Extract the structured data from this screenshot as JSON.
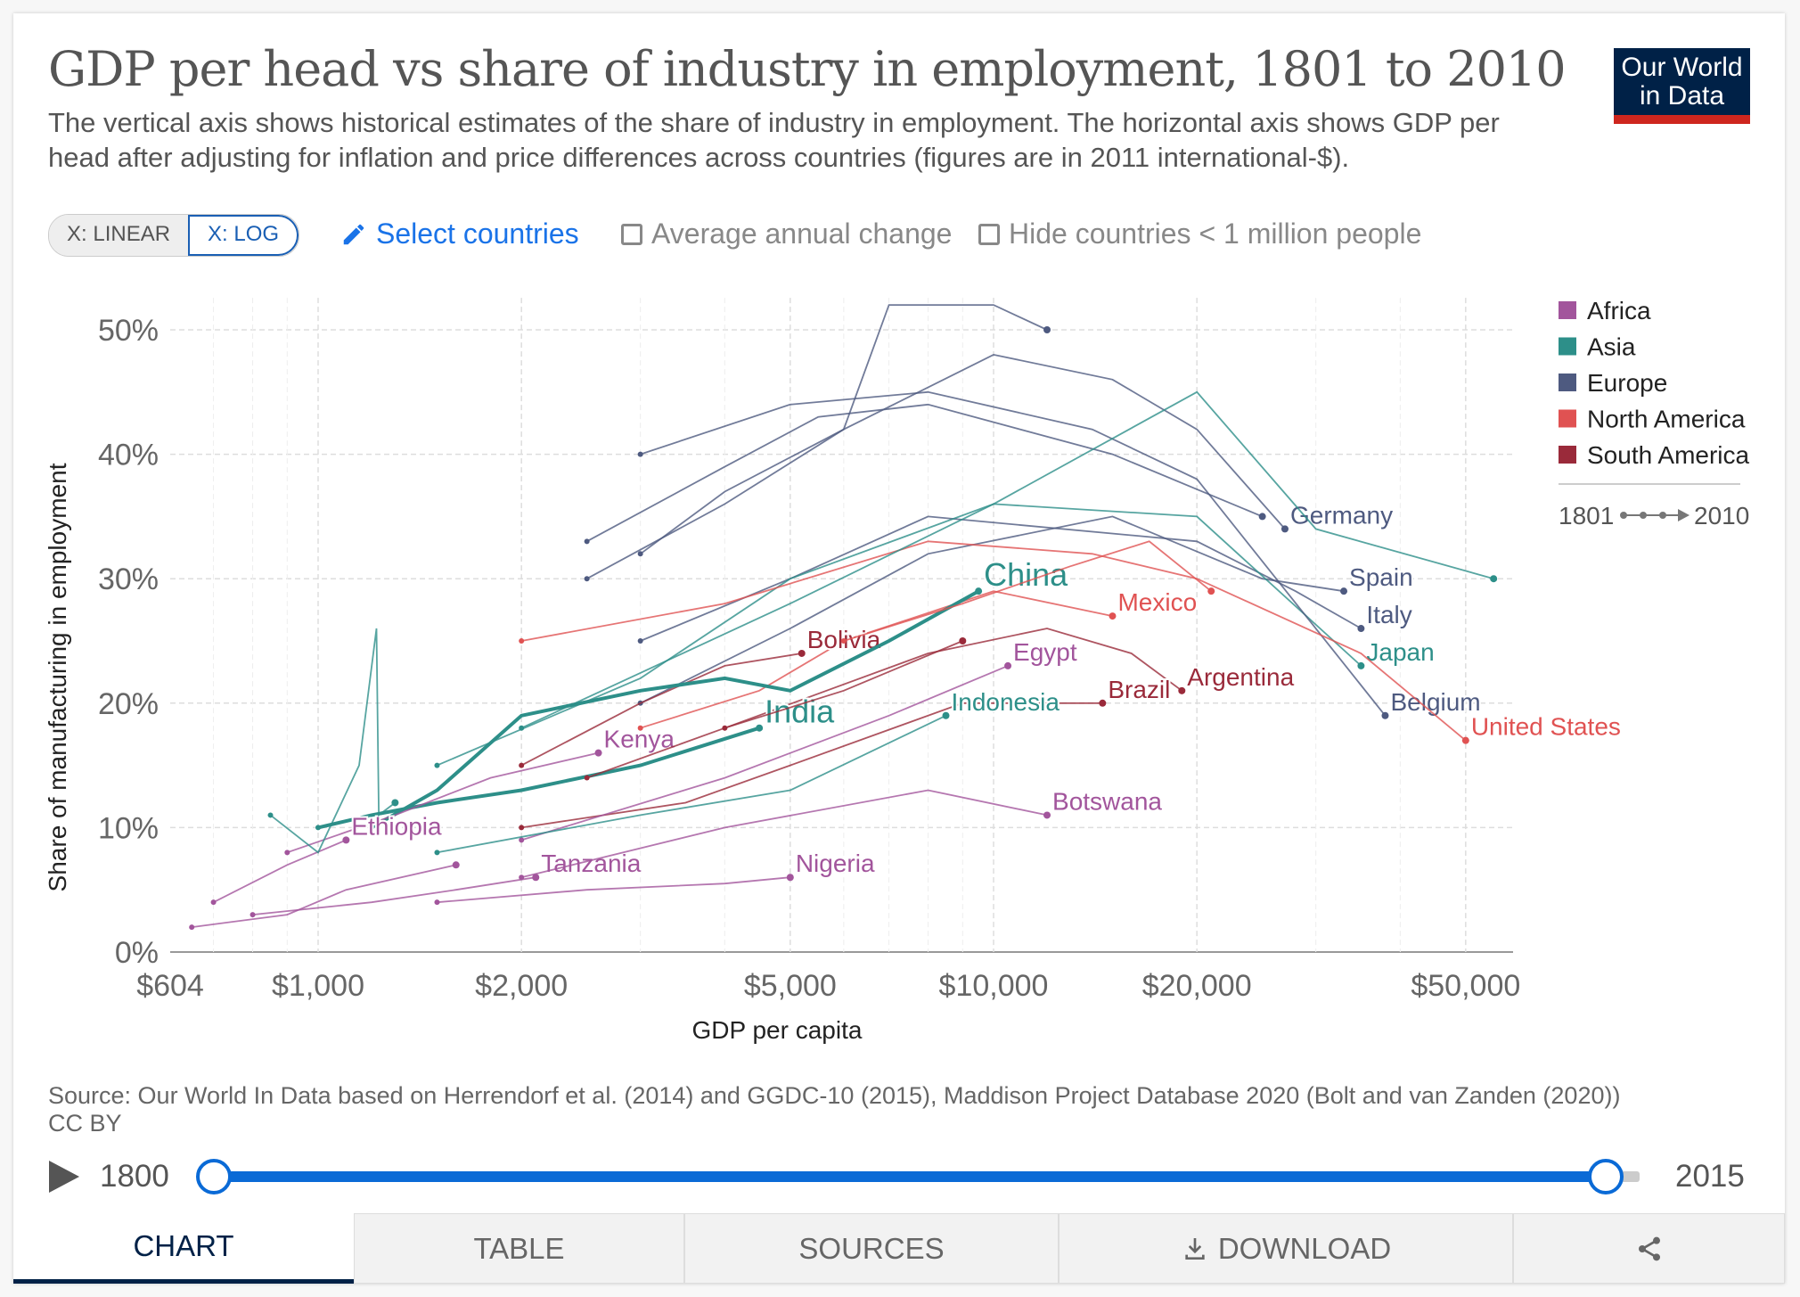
{
  "header": {
    "title": "GDP per head vs share of industry in employment, 1801 to 2010",
    "subtitle": "The vertical axis shows historical estimates of the share of industry in employment. The horizontal axis shows GDP per head after adjusting for inflation and price differences across countries (figures are in 2011 international-$).",
    "logo": "Our World in Data"
  },
  "controls": {
    "x_linear": "X: LINEAR",
    "x_log": "X: LOG",
    "select_countries": "Select countries",
    "average_change": "Average annual change",
    "hide_small": "Hide countries < 1 million people"
  },
  "timeline": {
    "start": "1800",
    "end": "2015",
    "range_start_fraction": 0,
    "range_end_fraction": 0.976
  },
  "source": "Source: Our World In Data based on Herrendorf et al. (2014) and GGDC-10 (2015), Maddison Project Database 2020 (Bolt and van Zanden (2020))",
  "license": "CC BY",
  "tabs": [
    "CHART",
    "TABLE",
    "SOURCES",
    "DOWNLOAD"
  ],
  "chart_data": {
    "type": "scatter",
    "connected": true,
    "xlabel": "GDP per capita",
    "ylabel": "Share of manufacturing in employment",
    "xscale": "log",
    "xlim": [
      604,
      60000
    ],
    "ylim": [
      0,
      52
    ],
    "xticks": [
      604,
      1000,
      2000,
      5000,
      10000,
      20000,
      50000
    ],
    "xtick_labels": [
      "$604",
      "$1,000",
      "$2,000",
      "$5,000",
      "$10,000",
      "$20,000",
      "$50,000"
    ],
    "yticks": [
      0,
      10,
      20,
      30,
      40,
      50
    ],
    "ytick_labels": [
      "0%",
      "10%",
      "20%",
      "30%",
      "40%",
      "50%"
    ],
    "grid": true,
    "legend_position": "right",
    "time_legend": {
      "from": "1801",
      "to": "2010"
    },
    "legend": [
      {
        "name": "Africa",
        "color": "#a2559c"
      },
      {
        "name": "Asia",
        "color": "#2d8f89"
      },
      {
        "name": "Europe",
        "color": "#4e5a80"
      },
      {
        "name": "North America",
        "color": "#e05252"
      },
      {
        "name": "South America",
        "color": "#9a2a3a"
      }
    ],
    "series": [
      {
        "name": "Germany",
        "region": "Europe",
        "points": [
          [
            2500,
            30
          ],
          [
            4000,
            36
          ],
          [
            6000,
            42
          ],
          [
            10000,
            48
          ],
          [
            15000,
            46
          ],
          [
            20000,
            42
          ],
          [
            27000,
            34
          ]
        ]
      },
      {
        "name": "Spain",
        "region": "Europe",
        "points": [
          [
            3000,
            20
          ],
          [
            5000,
            26
          ],
          [
            8000,
            32
          ],
          [
            15000,
            35
          ],
          [
            25000,
            30
          ],
          [
            33000,
            29
          ]
        ]
      },
      {
        "name": "Italy",
        "region": "Europe",
        "points": [
          [
            3000,
            25
          ],
          [
            5000,
            30
          ],
          [
            8000,
            35
          ],
          [
            20000,
            33
          ],
          [
            28000,
            29
          ],
          [
            35000,
            26
          ]
        ]
      },
      {
        "name": "Japan",
        "region": "Asia",
        "points": [
          [
            1500,
            15
          ],
          [
            3000,
            22
          ],
          [
            5000,
            30
          ],
          [
            10000,
            36
          ],
          [
            20000,
            35
          ],
          [
            35000,
            23
          ]
        ]
      },
      {
        "name": "Belgium",
        "region": "Europe",
        "points": [
          [
            3000,
            40
          ],
          [
            5000,
            44
          ],
          [
            8000,
            45
          ],
          [
            14000,
            42
          ],
          [
            20000,
            38
          ],
          [
            38000,
            19
          ]
        ]
      },
      {
        "name": "United States",
        "region": "North America",
        "points": [
          [
            2000,
            25
          ],
          [
            4000,
            28
          ],
          [
            8000,
            33
          ],
          [
            14000,
            32
          ],
          [
            20000,
            30
          ],
          [
            35000,
            24
          ],
          [
            50000,
            17
          ]
        ]
      },
      {
        "name": "Mexico",
        "region": "North America",
        "points": [
          [
            3000,
            18
          ],
          [
            4500,
            21
          ],
          [
            6000,
            25
          ],
          [
            10000,
            29
          ],
          [
            15000,
            27
          ]
        ]
      },
      {
        "name": "Argentina",
        "region": "South America",
        "points": [
          [
            4000,
            18
          ],
          [
            8000,
            24
          ],
          [
            12000,
            26
          ],
          [
            16000,
            24
          ],
          [
            19000,
            21
          ]
        ]
      },
      {
        "name": "Brazil",
        "region": "South America",
        "points": [
          [
            2000,
            10
          ],
          [
            3500,
            12
          ],
          [
            5000,
            15
          ],
          [
            9000,
            20
          ],
          [
            14500,
            20
          ]
        ]
      },
      {
        "name": "Egypt",
        "region": "Africa",
        "points": [
          [
            2000,
            9
          ],
          [
            4000,
            14
          ],
          [
            7000,
            19
          ],
          [
            10500,
            23
          ]
        ]
      },
      {
        "name": "Bolivia",
        "region": "South America",
        "points": [
          [
            2000,
            15
          ],
          [
            3000,
            20
          ],
          [
            4000,
            23
          ],
          [
            5200,
            24
          ]
        ]
      },
      {
        "name": "China",
        "region": "Asia",
        "points": [
          [
            1200,
            10
          ],
          [
            1500,
            13
          ],
          [
            2000,
            19
          ],
          [
            3000,
            21
          ],
          [
            4000,
            22
          ],
          [
            5000,
            21
          ],
          [
            7000,
            25
          ],
          [
            9500,
            29
          ]
        ]
      },
      {
        "name": "India",
        "region": "Asia",
        "points": [
          [
            1000,
            10
          ],
          [
            1200,
            11
          ],
          [
            1500,
            12
          ],
          [
            2000,
            13
          ],
          [
            3000,
            15
          ],
          [
            4500,
            18
          ]
        ]
      },
      {
        "name": "Indonesia",
        "region": "Asia",
        "points": [
          [
            1500,
            8
          ],
          [
            3000,
            11
          ],
          [
            5000,
            13
          ],
          [
            8500,
            19
          ]
        ]
      },
      {
        "name": "Kenya",
        "region": "Africa",
        "points": [
          [
            900,
            8
          ],
          [
            1300,
            11
          ],
          [
            1800,
            14
          ],
          [
            2600,
            16
          ]
        ]
      },
      {
        "name": "Ethiopia",
        "region": "Africa",
        "points": [
          [
            700,
            4
          ],
          [
            900,
            7
          ],
          [
            1100,
            9
          ]
        ]
      },
      {
        "name": "Tanzania",
        "region": "Africa",
        "points": [
          [
            800,
            3
          ],
          [
            1200,
            4
          ],
          [
            1600,
            5
          ],
          [
            2100,
            6
          ]
        ]
      },
      {
        "name": "Nigeria",
        "region": "Africa",
        "points": [
          [
            1500,
            4
          ],
          [
            2500,
            5
          ],
          [
            4000,
            5.5
          ],
          [
            5000,
            6
          ]
        ]
      },
      {
        "name": "Botswana",
        "region": "Africa",
        "points": [
          [
            2000,
            6
          ],
          [
            4000,
            10
          ],
          [
            8000,
            13
          ],
          [
            12000,
            11
          ]
        ]
      },
      {
        "region": "Asia",
        "points": [
          [
            850,
            11
          ],
          [
            1000,
            8
          ],
          [
            1150,
            15
          ],
          [
            1220,
            26
          ],
          [
            1230,
            11
          ],
          [
            1300,
            12
          ]
        ]
      },
      {
        "region": "Europe",
        "points": [
          [
            3000,
            32
          ],
          [
            4000,
            37
          ],
          [
            6000,
            42
          ],
          [
            7000,
            52
          ],
          [
            10000,
            52
          ],
          [
            12000,
            50
          ]
        ]
      },
      {
        "region": "Europe",
        "points": [
          [
            2500,
            33
          ],
          [
            4000,
            39
          ],
          [
            5500,
            43
          ],
          [
            8000,
            44
          ],
          [
            15000,
            40
          ],
          [
            25000,
            35
          ]
        ]
      },
      {
        "region": "Asia",
        "points": [
          [
            2000,
            18
          ],
          [
            5000,
            28
          ],
          [
            10000,
            36
          ],
          [
            20000,
            45
          ],
          [
            30000,
            34
          ],
          [
            55000,
            30
          ]
        ]
      },
      {
        "region": "Africa",
        "points": [
          [
            650,
            2
          ],
          [
            900,
            3
          ],
          [
            1100,
            5
          ],
          [
            1600,
            7
          ]
        ]
      },
      {
        "region": "South America",
        "points": [
          [
            2500,
            14
          ],
          [
            4000,
            18
          ],
          [
            6000,
            21
          ],
          [
            9000,
            25
          ]
        ]
      },
      {
        "region": "North America",
        "points": [
          [
            6000,
            25
          ],
          [
            9000,
            28
          ],
          [
            13000,
            31
          ],
          [
            17000,
            33
          ],
          [
            21000,
            29
          ]
        ]
      }
    ]
  }
}
